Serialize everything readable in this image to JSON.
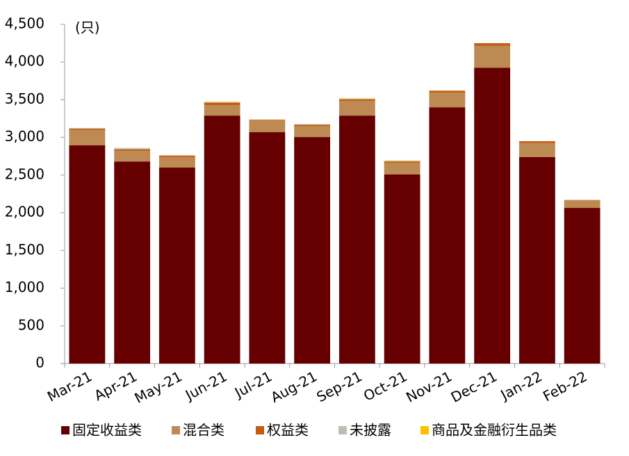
{
  "chart_data": {
    "type": "stacked_bar",
    "unit_label": "(只)",
    "categories": [
      "Mar-21",
      "Apr-21",
      "May-21",
      "Jun-21",
      "Jul-21",
      "Aug-21",
      "Sep-21",
      "Oct-21",
      "Nov-21",
      "Dec-21",
      "Jan-22",
      "Feb-22"
    ],
    "series": [
      {
        "name": "固定收益类",
        "color": "#660000",
        "values": [
          2895,
          2680,
          2600,
          3290,
          3070,
          3005,
          3290,
          2510,
          3400,
          3925,
          2740,
          2065
        ]
      },
      {
        "name": "混合类",
        "color": "#bc8a52",
        "values": [
          200,
          140,
          140,
          140,
          155,
          145,
          195,
          155,
          195,
          290,
          185,
          100
        ]
      },
      {
        "name": "权益类",
        "color": "#c55a11",
        "values": [
          20,
          20,
          20,
          30,
          10,
          20,
          20,
          15,
          25,
          35,
          25,
          5
        ]
      },
      {
        "name": "未披露",
        "color": "#bfbfb0",
        "values": [
          10,
          20,
          0,
          10,
          0,
          5,
          10,
          10,
          0,
          0,
          0,
          0
        ]
      },
      {
        "name": "商品及金融衍生品类",
        "color": "#ffc000",
        "values": [
          0,
          0,
          0,
          5,
          0,
          0,
          5,
          5,
          0,
          0,
          0,
          0
        ]
      }
    ],
    "ylim": [
      0,
      4500
    ],
    "yticks": [
      0,
      500,
      {
        "value": 1000,
        "label": "1,000"
      },
      {
        "value": 1500,
        "label": "1,500"
      },
      {
        "value": 2000,
        "label": "2,000"
      },
      {
        "value": 2500,
        "label": "2,500"
      },
      {
        "value": 3000,
        "label": "3,000"
      },
      {
        "value": 3500,
        "label": "3,500"
      },
      {
        "value": 4000,
        "label": "4,000"
      },
      {
        "value": 4500,
        "label": "4,500"
      }
    ],
    "grid": false,
    "legend": "bottom"
  }
}
